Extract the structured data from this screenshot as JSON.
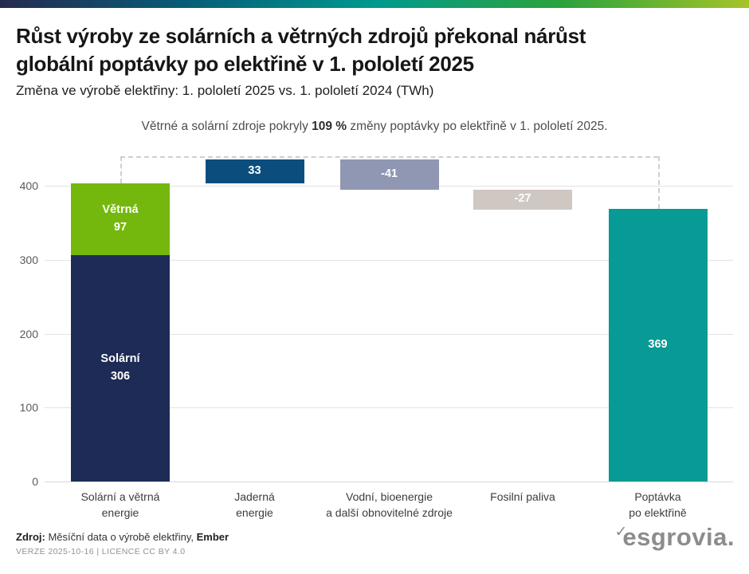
{
  "brand": {
    "gradient": [
      "#252a4f",
      "#075d79",
      "#00998e",
      "#2ba23c",
      "#a6c428"
    ],
    "logo_check": "✓",
    "logo_text": "esgrovia.",
    "logo_color": "#8c8c8c"
  },
  "header": {
    "title_line1": "Růst výroby ze solárních a větrných zdrojů překonal nárůst",
    "title_line2": "globální poptávky po elektřině v 1. pololetí 2025",
    "subtitle": "Změna ve výrobě elektřiny: 1. pololetí 2025 vs. 1. pololetí 2024 (TWh)"
  },
  "annotation": {
    "prefix": "Větrné a solární zdroje pokryly ",
    "highlight": "109 %",
    "suffix": " změny poptávky po elektřině v 1. pololetí 2025."
  },
  "chart_data": {
    "type": "bar",
    "subtype": "waterfall",
    "unit": "TWh",
    "grid": true,
    "ylim": [
      0,
      440
    ],
    "yticks": [
      0,
      100,
      200,
      300,
      400
    ],
    "categories": [
      "Solární a větrná\nenergie",
      "Jaderná\nenergie",
      "Vodní, bioenergie\na další obnovitelné zdroje",
      "Fosilní paliva",
      "Poptávka\npo elektřině"
    ],
    "bars": [
      {
        "name": "Solární a větrná energie",
        "start": 0,
        "end": 403,
        "segments": [
          {
            "label": "Solární",
            "value": 306,
            "color": "#1e2b56"
          },
          {
            "label": "Větrná",
            "value": 97,
            "color": "#74b80d"
          }
        ]
      },
      {
        "name": "Jaderná energie",
        "start": 403,
        "end": 436,
        "value": 33,
        "display": "33",
        "color": "#0b4e7e"
      },
      {
        "name": "Vodní, bioenergie a další obnovitelné zdroje",
        "start": 436,
        "end": 395,
        "value": -41,
        "display": "-41",
        "color": "#9097b2"
      },
      {
        "name": "Fosilní paliva",
        "start": 395,
        "end": 368,
        "value": -27,
        "display": "-27",
        "color": "#cfc7c2"
      },
      {
        "name": "Poptávka po elektřině",
        "start": 0,
        "end": 369,
        "value": 369,
        "display": "369",
        "color": "#089a94"
      }
    ],
    "connector": {
      "from_bar": 0,
      "to_bar": 4
    }
  },
  "footer": {
    "source_label": "Zdroj:",
    "source_text": " Měsíční data o výrobě elektřiny, ",
    "source_org": "Ember",
    "meta": "VERZE 2025-10-16 | LICENCE CC BY 4.0"
  }
}
